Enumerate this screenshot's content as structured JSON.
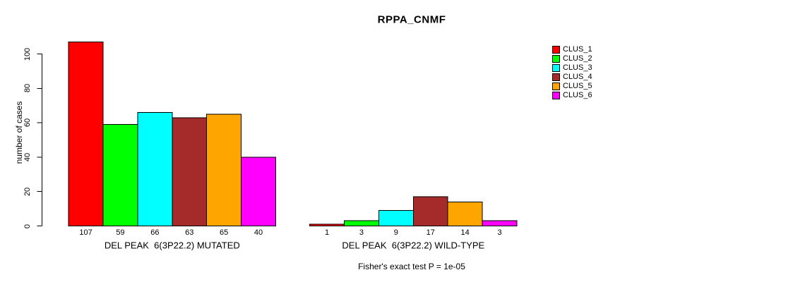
{
  "chart_data": {
    "type": "bar",
    "title": "RPPA_CNMF",
    "ylabel": "number of cases",
    "xlabel": "",
    "ylim": [
      0,
      110
    ],
    "yticks": [
      0,
      20,
      40,
      60,
      80,
      100
    ],
    "grid": false,
    "legend_position": "right",
    "categories": [
      "DEL PEAK  6(3P22.2) MUTATED",
      "DEL PEAK  6(3P22.2) WILD-TYPE"
    ],
    "series": [
      {
        "name": "CLUS_1",
        "color": "#FF0000",
        "values": [
          107,
          1
        ]
      },
      {
        "name": "CLUS_2",
        "color": "#00FF00",
        "values": [
          59,
          3
        ]
      },
      {
        "name": "CLUS_3",
        "color": "#00FFFF",
        "values": [
          66,
          9
        ]
      },
      {
        "name": "CLUS_4",
        "color": "#A52A2A",
        "values": [
          63,
          17
        ]
      },
      {
        "name": "CLUS_5",
        "color": "#FFA500",
        "values": [
          65,
          14
        ]
      },
      {
        "name": "CLUS_6",
        "color": "#FF00FF",
        "values": [
          40,
          3
        ]
      }
    ],
    "annotation": "Fisher's exact test P = 1e-05",
    "axis_color": "#000000",
    "bar_border_color": "#000000"
  }
}
